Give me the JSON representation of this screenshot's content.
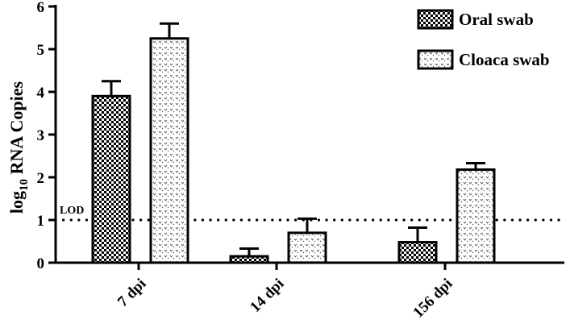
{
  "chart_data": {
    "type": "bar",
    "categories": [
      "7 dpi",
      "14 dpi",
      "156 dpi"
    ],
    "series": [
      {
        "name": "Oral swab",
        "values": [
          3.9,
          0.15,
          0.48
        ],
        "error": [
          0.35,
          0.18,
          0.34
        ],
        "pattern": "checker"
      },
      {
        "name": "Cloaca swab",
        "values": [
          5.25,
          0.7,
          2.18
        ],
        "error": [
          0.35,
          0.33,
          0.15
        ],
        "pattern": "dots"
      }
    ],
    "ylim": [
      0,
      6
    ],
    "yticks": [
      0,
      1,
      2,
      3,
      4,
      5,
      6
    ],
    "ylabel_main": "log",
    "ylabel_sub": "10",
    "ylabel_rest": " RNA Copies",
    "xlabel": "",
    "title": "",
    "reference_line": {
      "label": "LOD",
      "value": 1,
      "style": "dotted"
    },
    "legend_position": "top-right",
    "grid": false
  }
}
